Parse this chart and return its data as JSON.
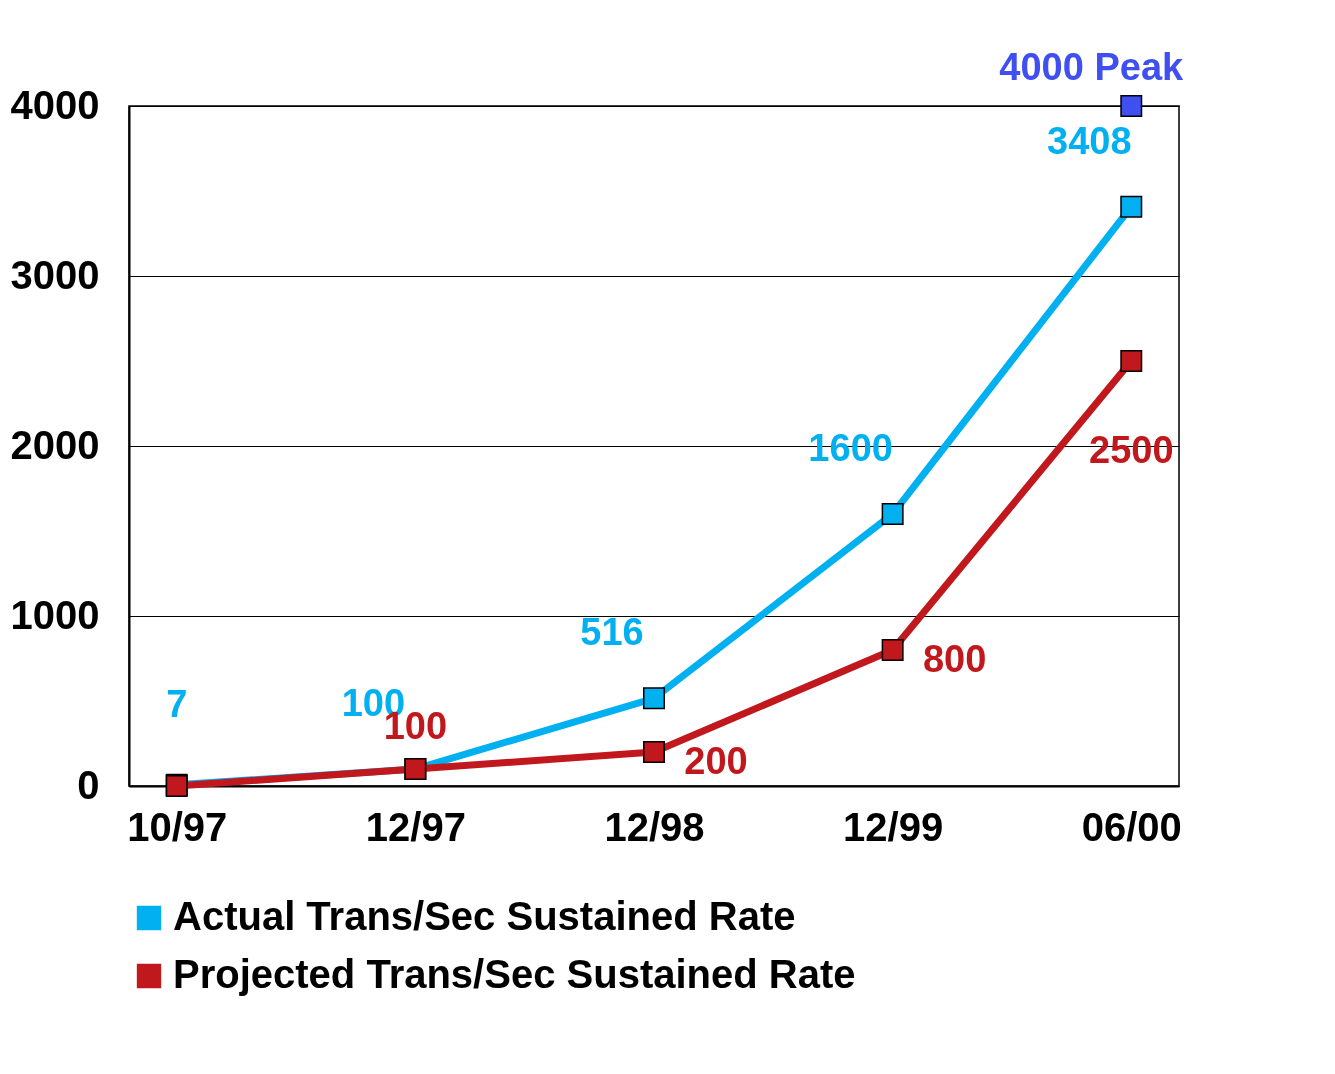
{
  "chart_data": {
    "type": "line",
    "categories": [
      "10/97",
      "12/97",
      "12/98",
      "12/99",
      "06/00"
    ],
    "series": [
      {
        "name": "Actual Trans/Sec Sustained Rate",
        "color": "#00b0f0",
        "values": [
          7,
          100,
          516,
          1600,
          3408
        ],
        "value_labels": [
          "7",
          "100",
          "516",
          "1600",
          "3408"
        ]
      },
      {
        "name": "Projected Trans/Sec Sustained Rate",
        "color": "#c0181c",
        "values": [
          0,
          100,
          200,
          800,
          2500
        ],
        "value_labels": [
          null,
          "100",
          "200",
          "800",
          "2500"
        ]
      },
      {
        "type": "scatter",
        "color": "#3f4ff0",
        "values": [
          null,
          null,
          null,
          null,
          4000
        ],
        "value_labels": [
          null,
          null,
          null,
          null,
          "4000 Peak"
        ]
      }
    ],
    "ylim": [
      0,
      4000
    ],
    "yticks": [
      0,
      1000,
      2000,
      3000,
      4000
    ],
    "grid": "y",
    "legend": "bottom",
    "marker": "square",
    "line_style": "solid"
  }
}
